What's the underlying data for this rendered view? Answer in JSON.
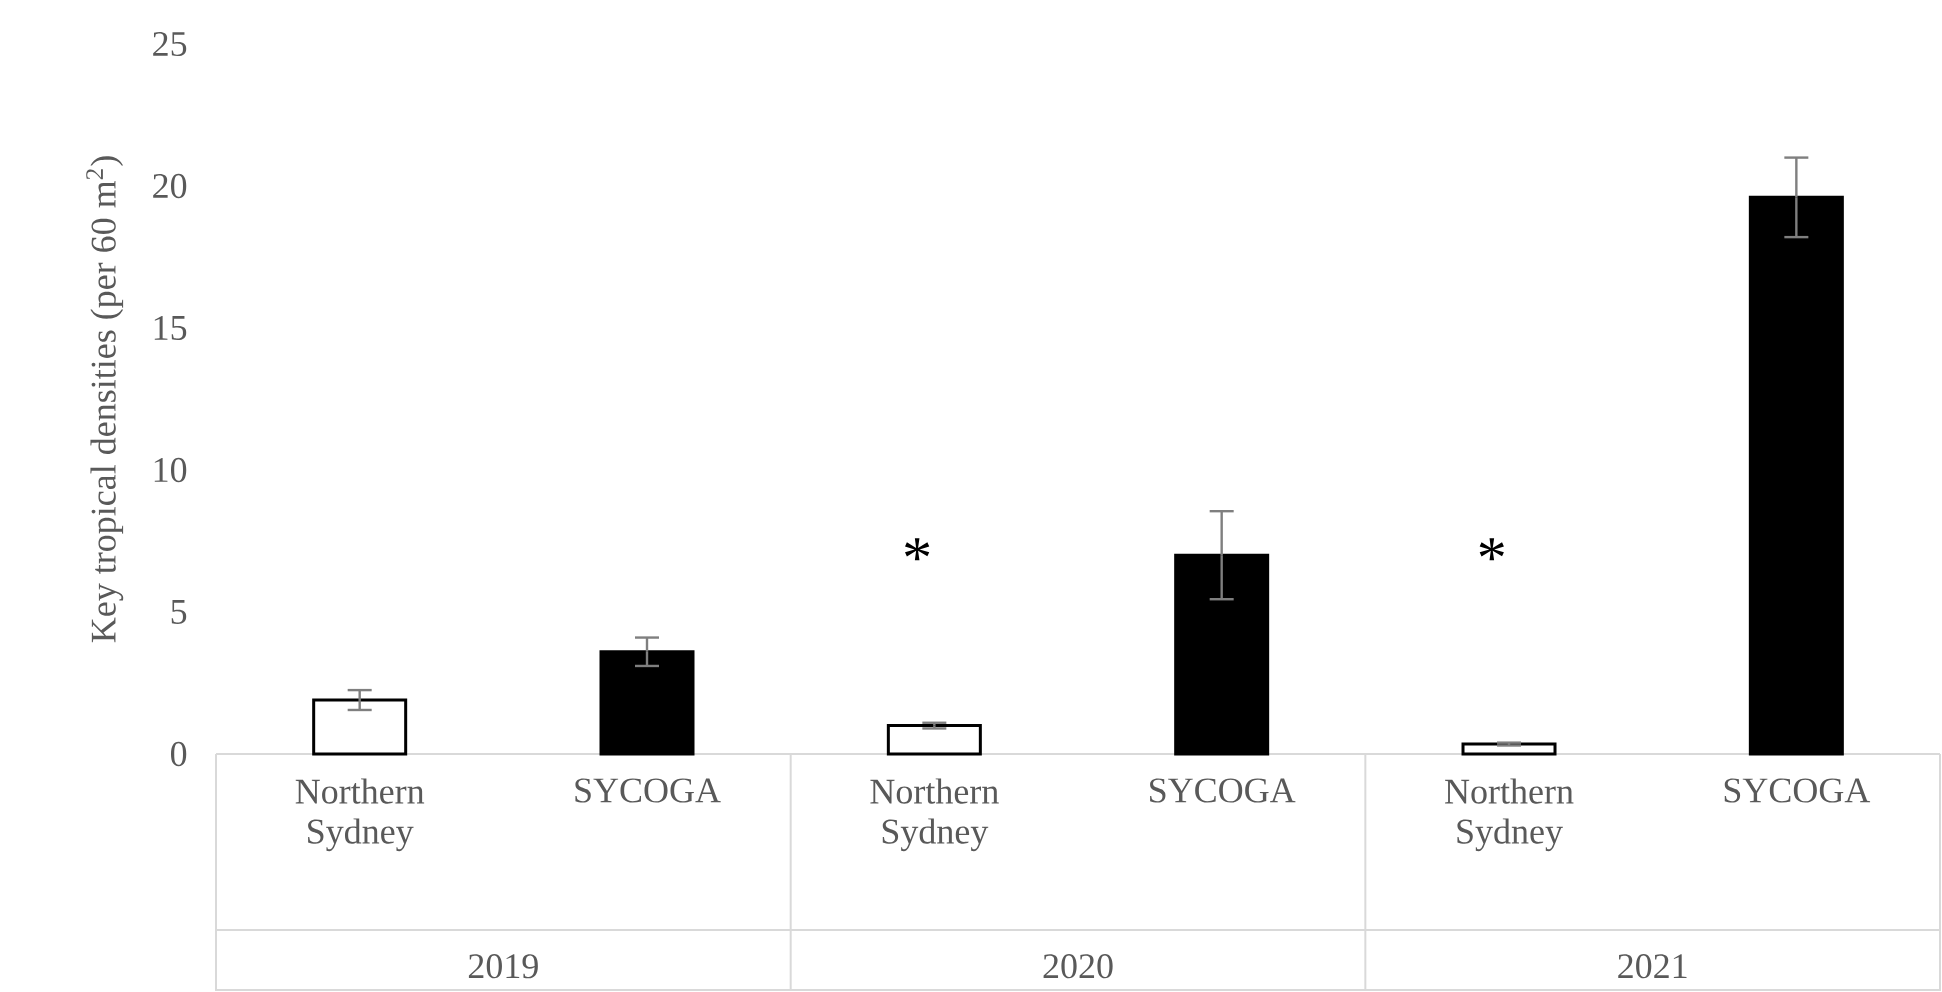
{
  "chart_data": {
    "type": "bar",
    "ylabel": "Key tropical densities (per 60 m$^{2}$)",
    "categories": [
      "Northern Sydney",
      "SYCOGA",
      "Northern Sydney",
      "SYCOGA",
      "Northern Sydney",
      "SYCOGA"
    ],
    "values": [
      1.9,
      3.6,
      1.0,
      7.0,
      0.35,
      19.6
    ],
    "errors": [
      0.35,
      0.5,
      0.1,
      1.55,
      0.05,
      1.4
    ],
    "colors": [
      "#ffffff",
      "#000000",
      "#ffffff",
      "#000000",
      "#ffffff",
      "#000000"
    ],
    "ylim": [
      0,
      25
    ],
    "yticks": [
      0,
      5,
      10,
      15,
      20,
      25
    ],
    "annotations": [
      "2019",
      "2020",
      "2021",
      "*",
      "*"
    ]
  }
}
